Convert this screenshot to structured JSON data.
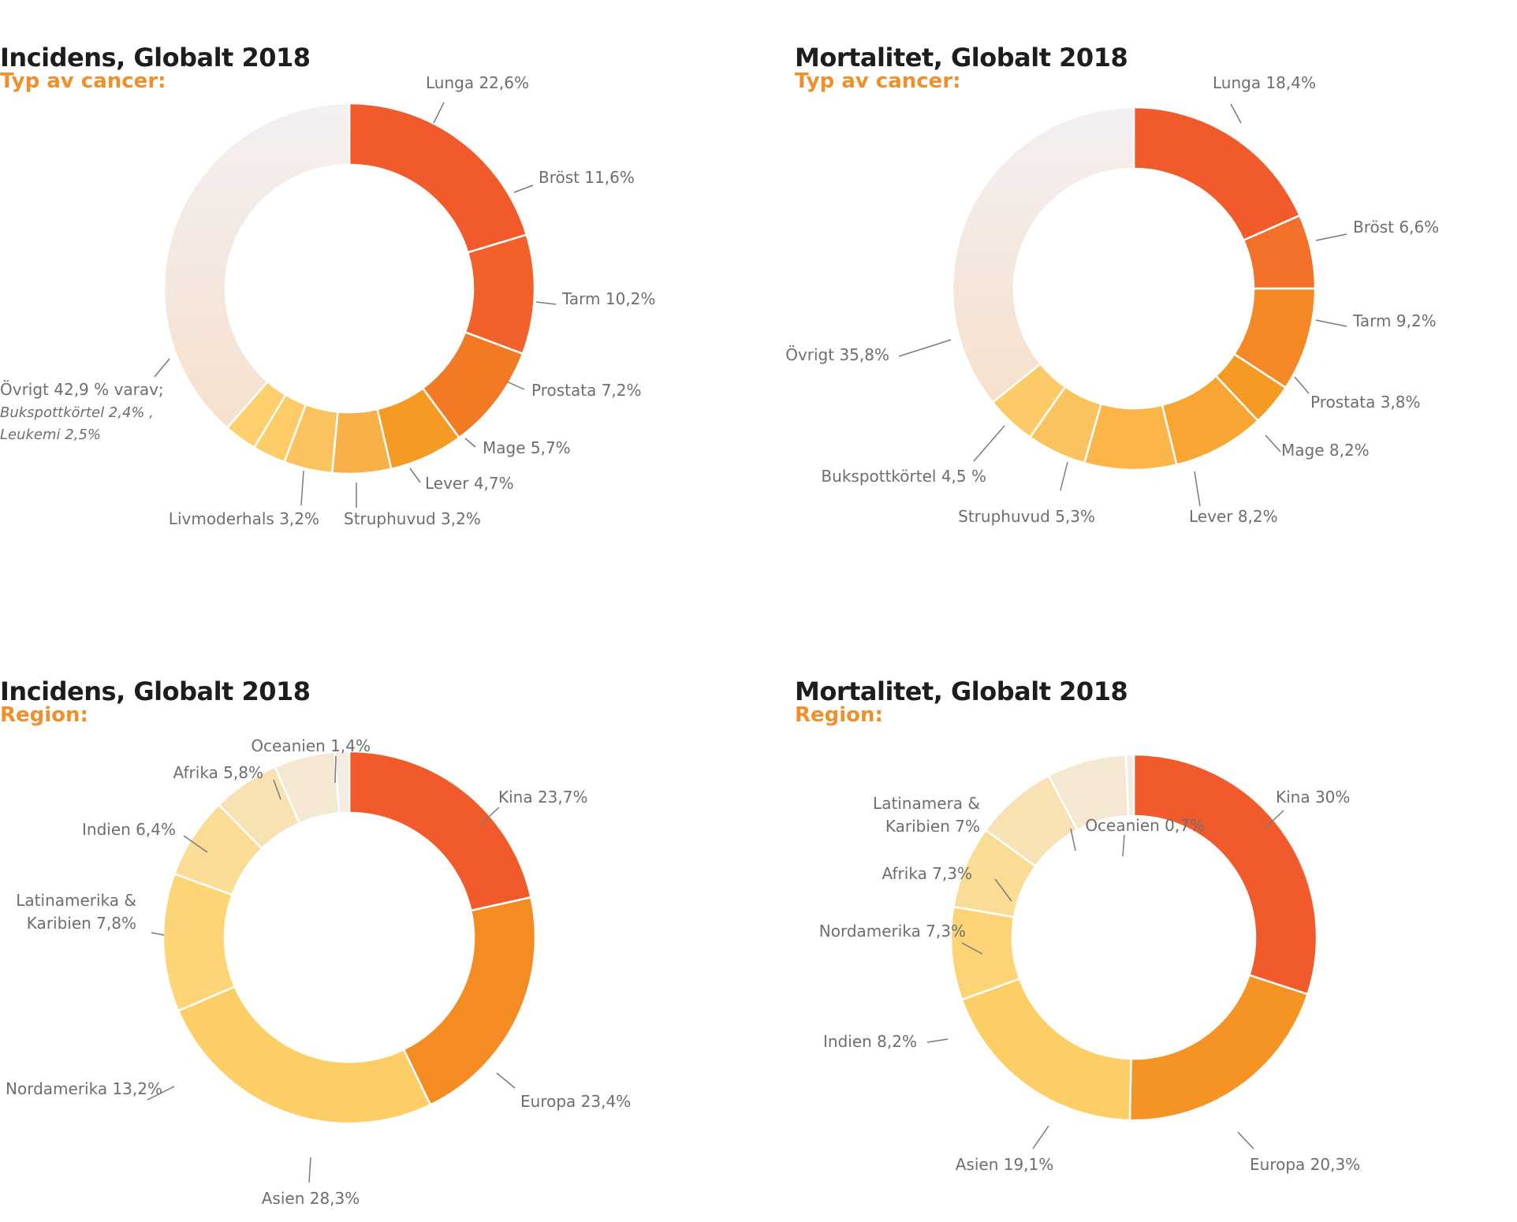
{
  "chart_data": [
    {
      "type": "pie",
      "title": "Incidens, Globalt 2018",
      "subtitle": "Typ av cancer:",
      "categories": [
        "Lunga",
        "Bröst",
        "Tarm",
        "Prostata",
        "Mage",
        "Lever",
        "Struphuvud",
        "Livmoderhals",
        "Övrigt"
      ],
      "values": [
        22.6,
        11.6,
        10.2,
        7.2,
        5.7,
        4.7,
        3.2,
        3.2,
        42.9
      ],
      "labels": [
        "Lunga 22,6%",
        "Bröst 11,6%",
        "Tarm 10,2%",
        "Prostata 7,2%",
        "Mage 5,7%",
        "Lever 4,7%",
        "Struphuvud 3,2%",
        "Livmoderhals 3,2%",
        "Övrigt 42,9 % varav;"
      ],
      "note_lines": [
        "Bukspottkörtel 2,4% ,",
        "Leukemi 2,5%"
      ]
    },
    {
      "type": "pie",
      "title": "Mortalitet, Globalt 2018",
      "subtitle": "Typ av cancer:",
      "categories": [
        "Lunga",
        "Bröst",
        "Tarm",
        "Prostata",
        "Mage",
        "Lever",
        "Struphuvud",
        "Bukspottkörtel",
        "Övrigt"
      ],
      "values": [
        18.4,
        6.6,
        9.2,
        3.8,
        8.2,
        8.2,
        5.3,
        4.5,
        35.8
      ],
      "labels": [
        "Lunga 18,4%",
        "Bröst 6,6%",
        "Tarm 9,2%",
        "Prostata 3,8%",
        "Mage 8,2%",
        "Lever 8,2%",
        "Struphuvud 5,3%",
        "Bukspottkörtel 4,5 %",
        "Övrigt 35,8%"
      ]
    },
    {
      "type": "pie",
      "title": "Incidens, Globalt 2018",
      "subtitle": "Region:",
      "categories": [
        "Kina",
        "Europa",
        "Asien",
        "Nordamerika",
        "Latinamerika & Karibien",
        "Indien",
        "Afrika",
        "Oceanien"
      ],
      "values": [
        23.7,
        23.4,
        28.3,
        13.2,
        7.8,
        6.4,
        5.8,
        1.4
      ],
      "labels": [
        "Kina 23,7%",
        "Europa 23,4%",
        "Asien 28,3%",
        "Nordamerika 13,2%",
        [
          "Latinamerika &",
          "Karibien 7,8%"
        ],
        "Indien 6,4%",
        "Afrika 5,8%",
        "Oceanien 1,4%"
      ]
    },
    {
      "type": "pie",
      "title": "Mortalitet, Globalt 2018",
      "subtitle": "Region:",
      "categories": [
        "Kina",
        "Europa",
        "Asien",
        "Indien",
        "Nordamerika",
        "Afrika",
        "Latinamera & Karibien",
        "Oceanien"
      ],
      "values": [
        30,
        20.3,
        19.1,
        8.2,
        7.3,
        7.3,
        7,
        0.7
      ],
      "labels": [
        "Kina 30%",
        "Europa 20,3%",
        "Asien 19,1%",
        "Indien 8,2%",
        "Nordamerika 7,3%",
        "Afrika 7,3%",
        [
          "Latinamera &",
          "Karibien 7%"
        ],
        "Oceanien 0,7%"
      ]
    }
  ]
}
